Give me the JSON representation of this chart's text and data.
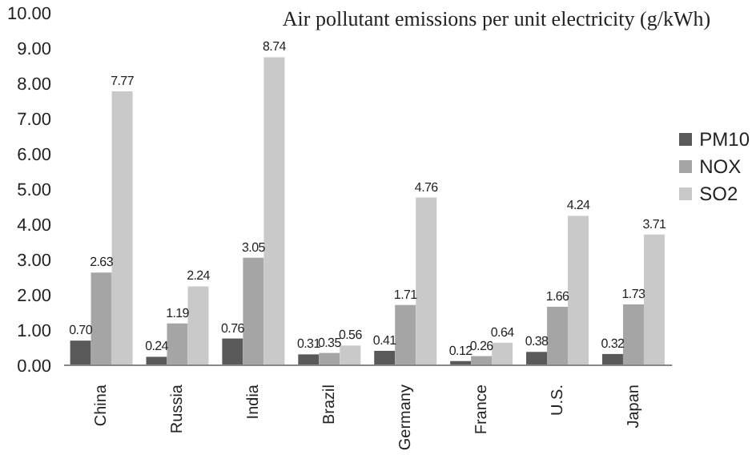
{
  "chart_data": {
    "type": "bar",
    "title": "Air pollutant emissions per unit electricity (g/kWh)",
    "categories": [
      "China",
      "Russia",
      "India",
      "Brazil",
      "Germany",
      "France",
      "U.S.",
      "Japan"
    ],
    "series": [
      {
        "name": "PM10",
        "color": "#595959",
        "values": [
          0.7,
          0.24,
          0.76,
          0.31,
          0.41,
          0.12,
          0.38,
          0.32
        ],
        "value_labels": [
          "0.70",
          "0.24",
          "0.76",
          "0.31",
          "0.41",
          "0.12",
          "0.38",
          "0.32"
        ]
      },
      {
        "name": "NOX",
        "color": "#a5a5a5",
        "values": [
          2.63,
          1.19,
          3.05,
          0.35,
          1.71,
          0.26,
          1.66,
          1.73
        ],
        "value_labels": [
          "2.63",
          "1.19",
          "3.05",
          "0.35",
          "1.71",
          "0.26",
          "1.66",
          "1.73"
        ]
      },
      {
        "name": "SO2",
        "color": "#c9c9c9",
        "values": [
          7.77,
          2.24,
          8.74,
          0.56,
          4.76,
          0.64,
          4.24,
          3.71
        ],
        "value_labels": [
          "7.77",
          "2.24",
          "8.74",
          "0.56",
          "4.76",
          "0.64",
          "4.24",
          "3.71"
        ]
      }
    ],
    "ylim": [
      0,
      10
    ],
    "yticks": [
      {
        "value": 0,
        "label": "0.00"
      },
      {
        "value": 1,
        "label": "1.00"
      },
      {
        "value": 2,
        "label": "2.00"
      },
      {
        "value": 3,
        "label": "3.00"
      },
      {
        "value": 4,
        "label": "4.00"
      },
      {
        "value": 5,
        "label": "5.00"
      },
      {
        "value": 6,
        "label": "6.00"
      },
      {
        "value": 7,
        "label": "7.00"
      },
      {
        "value": 8,
        "label": "8.00"
      },
      {
        "value": 9,
        "label": "9.00"
      },
      {
        "value": 10,
        "label": "10.00"
      }
    ],
    "grid": false,
    "legend": "right"
  }
}
